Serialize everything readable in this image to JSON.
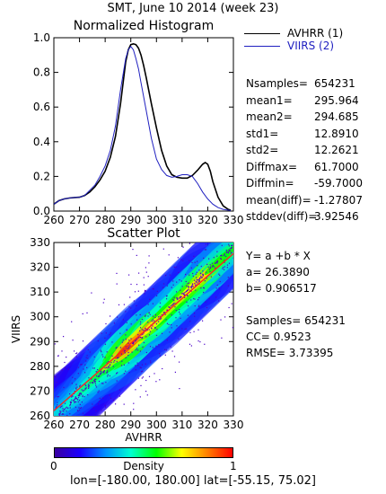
{
  "title": "SMT,  June 10 2014 (week 23)",
  "histogram": {
    "title": "Normalized Histogram",
    "legend": [
      {
        "label": "AVHRR (1)",
        "color": "#000000"
      },
      {
        "label": "VIIRS (2)",
        "color": "#2020c0"
      }
    ]
  },
  "stats": [
    {
      "label": "Nsamples=",
      "value": "654231"
    },
    {
      "label": "mean1=",
      "value": "295.964"
    },
    {
      "label": "mean2=",
      "value": "294.685"
    },
    {
      "label": "std1=",
      "value": "12.8910"
    },
    {
      "label": "std2=",
      "value": "12.2621"
    },
    {
      "label": "Diffmax=",
      "value": "61.7000"
    },
    {
      "label": "Diffmin=",
      "value": "-59.7000"
    },
    {
      "label": "mean(diff)=",
      "value": "-1.27807"
    },
    {
      "label": "stddev(diff)=",
      "value": "3.92546"
    }
  ],
  "scatter": {
    "title": "Scatter Plot",
    "xlabel": "AVHRR",
    "ylabel": "VIIRS"
  },
  "regression": {
    "equation": "Y=  a  +b  * X",
    "a": "a=  26.3890",
    "b": "b=  0.906517",
    "samples": "Samples= 654231",
    "cc": "CC=   0.9523",
    "rmse": "RMSE=  3.73395"
  },
  "colorbar": {
    "label": "Density",
    "min": "0",
    "max": "1"
  },
  "region": "lon=[-180.00, 180.00] lat=[-55.15, 75.02]",
  "chart_data": [
    {
      "type": "line",
      "title": "Normalized Histogram",
      "xlim": [
        260,
        330
      ],
      "ylim": [
        0.0,
        1.0
      ],
      "xticks": [
        "260",
        "270",
        "280",
        "290",
        "300",
        "310",
        "320",
        "330"
      ],
      "yticks": [
        "0.0",
        "0.2",
        "0.4",
        "0.6",
        "0.8",
        "1.0"
      ],
      "series": [
        {
          "name": "AVHRR (1)",
          "color": "#000000",
          "x": [
            260,
            262,
            264,
            266,
            268,
            270,
            272,
            274,
            276,
            278,
            280,
            282,
            284,
            286,
            288,
            289,
            290,
            291,
            292,
            293,
            294,
            295,
            296,
            298,
            300,
            302,
            304,
            306,
            308,
            310,
            312,
            314,
            316,
            318,
            319,
            320,
            321,
            322,
            324,
            326,
            328,
            329
          ],
          "y": [
            0.04,
            0.06,
            0.07,
            0.075,
            0.078,
            0.08,
            0.09,
            0.11,
            0.14,
            0.18,
            0.23,
            0.31,
            0.43,
            0.62,
            0.86,
            0.93,
            0.96,
            0.965,
            0.96,
            0.94,
            0.9,
            0.84,
            0.77,
            0.62,
            0.48,
            0.35,
            0.26,
            0.21,
            0.195,
            0.19,
            0.19,
            0.205,
            0.235,
            0.27,
            0.28,
            0.27,
            0.23,
            0.17,
            0.08,
            0.03,
            0.01,
            0.005
          ]
        },
        {
          "name": "VIIRS (2)",
          "color": "#2020c0",
          "x": [
            260,
            262,
            264,
            266,
            268,
            270,
            272,
            274,
            276,
            278,
            280,
            282,
            284,
            286,
            288,
            289,
            290,
            291,
            292,
            293,
            294,
            296,
            298,
            300,
            302,
            304,
            306,
            308,
            310,
            312,
            314,
            316,
            318,
            320,
            322,
            324,
            326,
            328,
            329
          ],
          "y": [
            0.04,
            0.06,
            0.07,
            0.075,
            0.078,
            0.08,
            0.09,
            0.12,
            0.15,
            0.2,
            0.26,
            0.35,
            0.49,
            0.7,
            0.88,
            0.93,
            0.95,
            0.93,
            0.88,
            0.82,
            0.74,
            0.58,
            0.42,
            0.3,
            0.24,
            0.205,
            0.195,
            0.2,
            0.21,
            0.21,
            0.2,
            0.16,
            0.11,
            0.07,
            0.04,
            0.02,
            0.01,
            0.005,
            0.003
          ]
        }
      ]
    },
    {
      "type": "scatter",
      "title": "Scatter Plot",
      "xlabel": "AVHRR",
      "ylabel": "VIIRS",
      "xlim": [
        260,
        330
      ],
      "ylim": [
        260,
        330
      ],
      "xticks": [
        "260",
        "270",
        "280",
        "290",
        "300",
        "310",
        "320",
        "330"
      ],
      "yticks": [
        "260",
        "270",
        "280",
        "290",
        "300",
        "310",
        "320",
        "330"
      ],
      "fit": {
        "a": 26.389,
        "b": 0.906517
      },
      "density_cells": [
        {
          "x": 262,
          "y": 262,
          "d": 0.35
        },
        {
          "x": 265,
          "y": 265,
          "d": 0.4
        },
        {
          "x": 270,
          "y": 269,
          "d": 0.45
        },
        {
          "x": 275,
          "y": 274,
          "d": 0.5
        },
        {
          "x": 280,
          "y": 279,
          "d": 0.55
        },
        {
          "x": 285,
          "y": 284,
          "d": 0.7
        },
        {
          "x": 290,
          "y": 289,
          "d": 0.95
        },
        {
          "x": 295,
          "y": 294,
          "d": 0.85
        },
        {
          "x": 300,
          "y": 298,
          "d": 0.75
        },
        {
          "x": 305,
          "y": 303,
          "d": 0.7
        },
        {
          "x": 310,
          "y": 308,
          "d": 0.7
        },
        {
          "x": 315,
          "y": 313,
          "d": 0.75
        },
        {
          "x": 320,
          "y": 318,
          "d": 0.8
        },
        {
          "x": 325,
          "y": 323,
          "d": 0.6
        }
      ]
    }
  ]
}
